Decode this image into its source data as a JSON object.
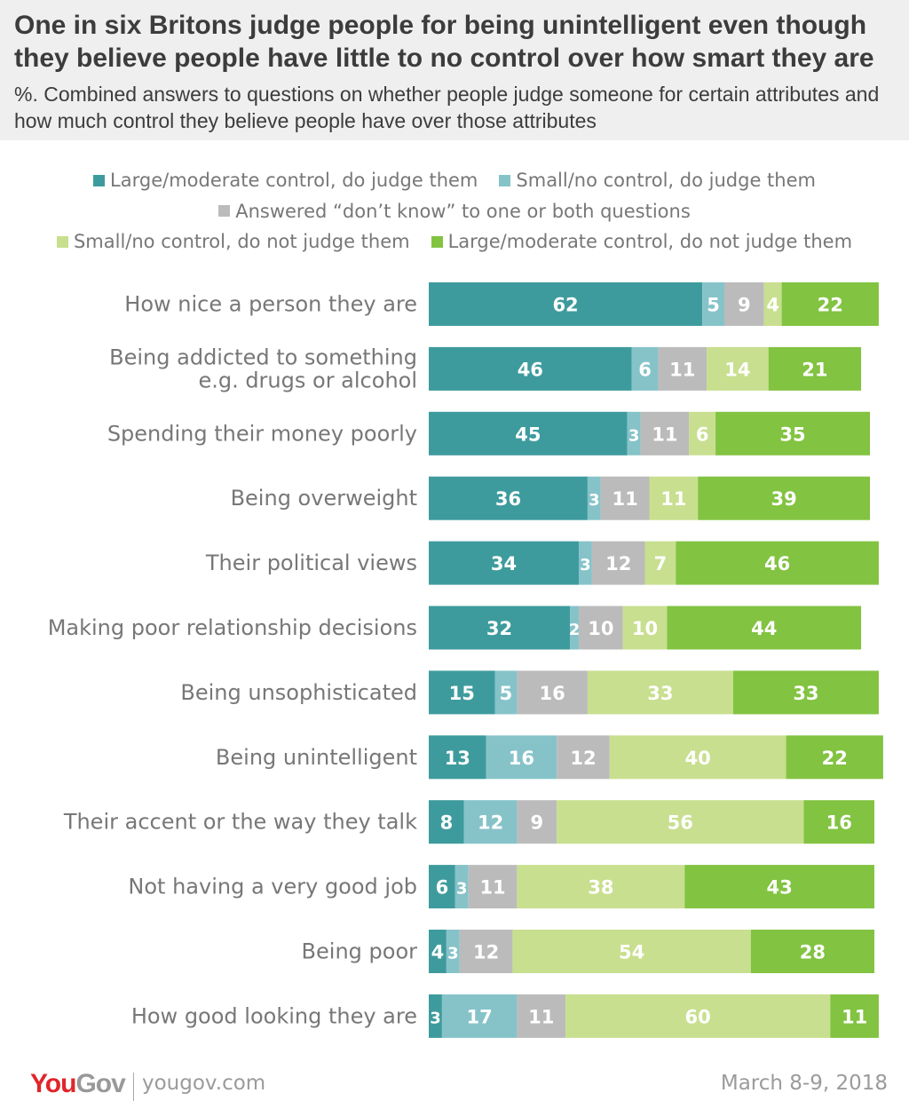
{
  "header": {
    "title": "One in six Britons judge people for being unintelligent even though they believe people have little to no control over how smart they are",
    "subtitle": "%. Combined answers to questions on whether people judge someone for certain attributes and how much control they believe people have over those attributes"
  },
  "legend": {
    "row1": [
      {
        "label": "Large/moderate control, do judge them",
        "color": "#3e9b9d"
      },
      {
        "label": "Small/no control, do judge them",
        "color": "#86c3c9"
      }
    ],
    "row2": [
      {
        "label": "Answered “don’t know” to one or both questions",
        "color": "#bbbbbb"
      }
    ],
    "row3": [
      {
        "label": "Small/no control, do not judge them",
        "color": "#c8df8f"
      },
      {
        "label": "Large/moderate control, do not judge them",
        "color": "#82c341"
      }
    ]
  },
  "chart_data": {
    "type": "bar",
    "orientation": "horizontal",
    "stacked": true,
    "categories": [
      [
        "How nice a person they are"
      ],
      [
        "Being addicted to something",
        "e.g. drugs or alcohol"
      ],
      [
        "Spending their money poorly"
      ],
      [
        "Being overweight"
      ],
      [
        "Their political views"
      ],
      [
        "Making poor relationship decisions"
      ],
      [
        "Being unsophisticated"
      ],
      [
        "Being unintelligent"
      ],
      [
        "Their accent or the way they talk"
      ],
      [
        "Not having a very good job"
      ],
      [
        "Being poor"
      ],
      [
        "How good looking they are"
      ]
    ],
    "series": [
      {
        "name": "Large/moderate control, do judge them",
        "color": "#3e9b9d",
        "values": [
          62,
          46,
          45,
          36,
          34,
          32,
          15,
          13,
          8,
          6,
          4,
          3
        ]
      },
      {
        "name": "Small/no control, do judge them",
        "color": "#86c3c9",
        "values": [
          5,
          6,
          3,
          3,
          3,
          2,
          5,
          16,
          12,
          3,
          3,
          17
        ]
      },
      {
        "name": "Answered “don’t know” to one or both questions",
        "color": "#bbbbbb",
        "values": [
          9,
          11,
          11,
          11,
          12,
          10,
          16,
          12,
          9,
          11,
          12,
          11
        ]
      },
      {
        "name": "Small/no control, do not judge them",
        "color": "#c8df8f",
        "values": [
          4,
          14,
          6,
          11,
          7,
          10,
          33,
          40,
          56,
          38,
          54,
          60
        ]
      },
      {
        "name": "Large/moderate control, do not judge them",
        "color": "#82c341",
        "values": [
          22,
          21,
          35,
          39,
          46,
          44,
          33,
          22,
          16,
          43,
          28,
          11
        ]
      }
    ],
    "xlim": [
      0,
      100
    ]
  },
  "footer": {
    "logo_you": "You",
    "logo_gov": "Gov",
    "url": "yougov.com",
    "date": "March 8-9, 2018"
  }
}
